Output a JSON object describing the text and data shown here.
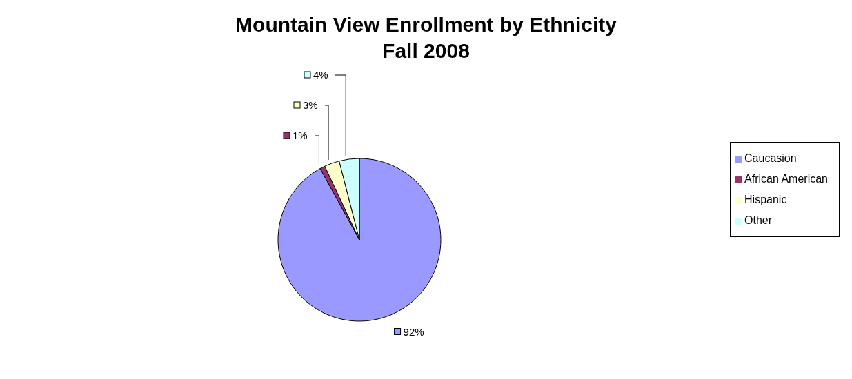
{
  "chart_data": {
    "type": "pie",
    "title": "Mountain View Enrollment by Ethnicity\nFall 2008",
    "categories": [
      "Caucasion",
      "African American",
      "Hispanic",
      "Other"
    ],
    "values": [
      92,
      1,
      3,
      4
    ],
    "colors": [
      "#9999ff",
      "#993366",
      "#ffffcc",
      "#ccffff"
    ],
    "value_labels": [
      "92%",
      "1%",
      "3%",
      "4%"
    ],
    "legend": "right"
  }
}
